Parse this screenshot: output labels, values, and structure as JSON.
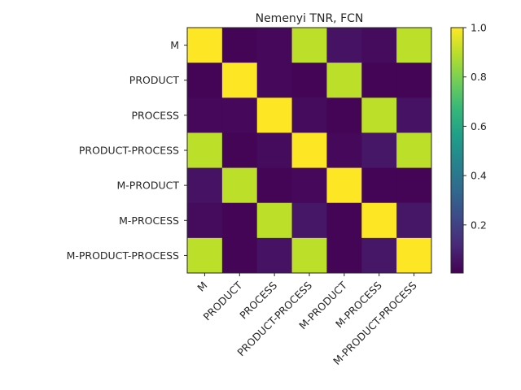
{
  "chart_data": {
    "type": "heatmap",
    "title": "Nemenyi TNR, FCN",
    "row_labels": [
      "M",
      "PRODUCT",
      "PROCESS",
      "PRODUCT-PROCESS",
      "M-PRODUCT",
      "M-PROCESS",
      "M-PRODUCT-PROCESS"
    ],
    "col_labels": [
      "M",
      "PRODUCT",
      "PROCESS",
      "PRODUCT-PROCESS",
      "M-PRODUCT",
      "M-PROCESS",
      "M-PRODUCT-PROCESS"
    ],
    "values": [
      [
        1.0,
        0.01,
        0.02,
        0.9,
        0.05,
        0.03,
        0.9
      ],
      [
        0.01,
        1.0,
        0.02,
        0.01,
        0.9,
        0.01,
        0.01
      ],
      [
        0.02,
        0.02,
        1.0,
        0.03,
        0.01,
        0.9,
        0.05
      ],
      [
        0.9,
        0.01,
        0.03,
        1.0,
        0.02,
        0.06,
        0.9
      ],
      [
        0.05,
        0.9,
        0.01,
        0.02,
        1.0,
        0.01,
        0.01
      ],
      [
        0.03,
        0.01,
        0.9,
        0.06,
        0.01,
        1.0,
        0.06
      ],
      [
        0.9,
        0.01,
        0.05,
        0.9,
        0.01,
        0.06,
        1.0
      ]
    ],
    "colormap": "viridis",
    "colorbar_ticks": [
      0.2,
      0.4,
      0.6,
      0.8,
      1.0
    ],
    "colorbar_tick_labels": [
      "0.2",
      "0.4",
      "0.6",
      "0.8",
      "1.0"
    ],
    "vmin": 0.0,
    "vmax": 1.0,
    "grid": false
  }
}
